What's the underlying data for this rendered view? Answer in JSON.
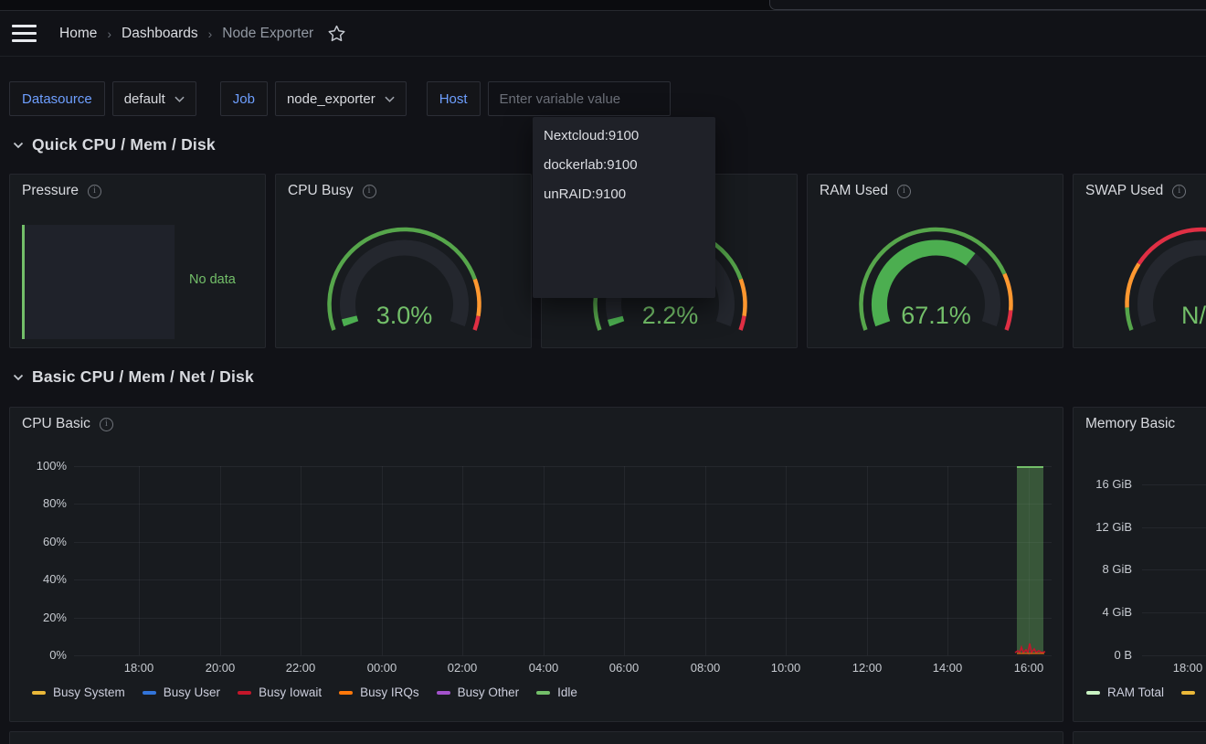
{
  "nav": {
    "separator": "›",
    "breadcrumb": [
      {
        "label": "Home"
      },
      {
        "label": "Dashboards"
      },
      {
        "label": "Node Exporter"
      }
    ]
  },
  "variables": {
    "datasource_label": "Datasource",
    "datasource_value": "default",
    "job_label": "Job",
    "job_value": "node_exporter",
    "host_label": "Host",
    "host_placeholder": "Enter variable value"
  },
  "host_dropdown": {
    "options": [
      "Nextcloud:9100",
      "dockerlab:9100",
      "unRAID:9100"
    ]
  },
  "sections": {
    "quick": "Quick CPU / Mem / Disk",
    "basic": "Basic CPU / Mem / Net / Disk"
  },
  "colors": {
    "accent_blue": "#6E9FFF",
    "green": "#73BF69",
    "gauge_fill_green": "#4CAE50",
    "orange": "#FF9830",
    "red": "#E02F44"
  },
  "panels": {
    "pressure": {
      "title": "Pressure",
      "no_data": "No data"
    },
    "cpu_busy": {
      "title": "CPU Busy",
      "value": "3.0%",
      "percent": 3,
      "ring": [
        {
          "from": 0,
          "to": 0.82,
          "color": "#56A64B"
        },
        {
          "from": 0.82,
          "to": 0.95,
          "color": "#FF9830"
        },
        {
          "from": 0.95,
          "to": 1,
          "color": "#E02F44"
        }
      ]
    },
    "load_gauge": {
      "title": "",
      "value": "2.2%",
      "percent": 2.2,
      "ring": [
        {
          "from": 0,
          "to": 0.82,
          "color": "#56A64B"
        },
        {
          "from": 0.82,
          "to": 0.95,
          "color": "#FF9830"
        },
        {
          "from": 0.95,
          "to": 1,
          "color": "#E02F44"
        }
      ]
    },
    "ram_used": {
      "title": "RAM Used",
      "value": "67.1%",
      "percent": 67.1,
      "ring": [
        {
          "from": 0,
          "to": 0.8,
          "color": "#56A64B"
        },
        {
          "from": 0.8,
          "to": 0.93,
          "color": "#FF9830"
        },
        {
          "from": 0.93,
          "to": 1,
          "color": "#E02F44"
        }
      ]
    },
    "swap_used": {
      "title": "SWAP Used",
      "value": "N/A",
      "percent": 0,
      "ring": [
        {
          "from": 0,
          "to": 0.08,
          "color": "#56A64B"
        },
        {
          "from": 0.08,
          "to": 0.24,
          "color": "#FF9830"
        },
        {
          "from": 0.24,
          "to": 1,
          "color": "#E02F44"
        }
      ]
    },
    "cpu_basic": {
      "title": "CPU Basic",
      "y_ticks": [
        "100%",
        "80%",
        "60%",
        "40%",
        "20%",
        "0%"
      ],
      "x_ticks": [
        "18:00",
        "20:00",
        "22:00",
        "00:00",
        "02:00",
        "04:00",
        "06:00",
        "08:00",
        "10:00",
        "12:00",
        "14:00",
        "16:00"
      ],
      "legend": [
        {
          "label": "Busy System",
          "color": "#EAB839"
        },
        {
          "label": "Busy User",
          "color": "#3274D9"
        },
        {
          "label": "Busy Iowait",
          "color": "#C4162A"
        },
        {
          "label": "Busy IRQs",
          "color": "#FF780A"
        },
        {
          "label": "Busy Other",
          "color": "#A352CC"
        },
        {
          "label": "Idle",
          "color": "#73BF69"
        }
      ]
    },
    "memory_basic": {
      "title": "Memory Basic",
      "y_ticks": [
        "16 GiB",
        "12 GiB",
        "8 GiB",
        "4 GiB",
        "0 B"
      ],
      "x_ticks": [
        "18:00"
      ],
      "legend": [
        {
          "label": "RAM Total",
          "color": "#C8F2C2"
        },
        {
          "label": "",
          "color": "#EAB839"
        }
      ]
    }
  },
  "chart_data": [
    {
      "type": "area",
      "title": "CPU Basic",
      "ylabel": "percent",
      "ylim": [
        0,
        100
      ],
      "x_ticks": [
        "18:00",
        "20:00",
        "22:00",
        "00:00",
        "02:00",
        "04:00",
        "06:00",
        "08:00",
        "10:00",
        "12:00",
        "14:00",
        "16:00"
      ],
      "grid": true,
      "legend_position": "bottom",
      "series": [
        {
          "name": "Idle",
          "color": "#73BF69",
          "points": [
            [
              "15:45",
              100
            ],
            [
              "16:05",
              100
            ]
          ]
        },
        {
          "name": "Busy Iowait",
          "color": "#C4162A",
          "points": [
            [
              "15:45",
              1
            ],
            [
              "15:52",
              4
            ],
            [
              "15:58",
              1
            ],
            [
              "16:03",
              3
            ],
            [
              "16:05",
              1
            ]
          ]
        }
      ],
      "note": "series only have data between ~15:45 and 16:05; rest of range empty"
    },
    {
      "type": "line",
      "title": "Memory Basic",
      "y_ticks": [
        "16 GiB",
        "12 GiB",
        "8 GiB",
        "4 GiB",
        "0 B"
      ],
      "x_ticks": [
        "18:00"
      ],
      "grid": true,
      "legend_position": "bottom",
      "series": [
        {
          "name": "RAM Total",
          "color": "#C8F2C2",
          "points": []
        }
      ],
      "note": "panel cropped at right edge of screenshot; no plotted data visible"
    },
    {
      "type": "gauge",
      "title": "CPU Busy",
      "value": 3.0,
      "unit": "%"
    },
    {
      "type": "gauge",
      "title": "",
      "value": 2.2,
      "unit": "%"
    },
    {
      "type": "gauge",
      "title": "RAM Used",
      "value": 67.1,
      "unit": "%"
    },
    {
      "type": "gauge",
      "title": "SWAP Used",
      "value": "N/A",
      "unit": "%"
    }
  ]
}
